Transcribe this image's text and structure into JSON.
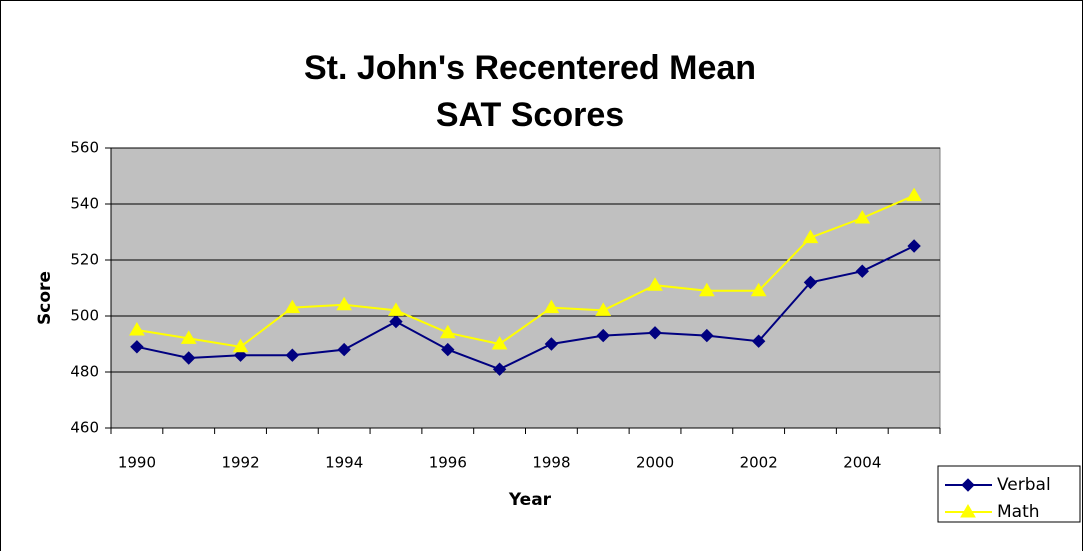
{
  "chart_data": {
    "type": "line",
    "title": [
      "St. John's Recentered Mean",
      "SAT Scores"
    ],
    "x_label": "Year",
    "y_label": "Score",
    "categories": [
      "1990",
      null,
      "1992",
      null,
      "1994",
      null,
      "1996",
      null,
      "1998",
      null,
      "2000",
      null,
      "2002",
      null,
      "2004",
      null
    ],
    "series": [
      {
        "name": "Verbal",
        "color": "#000080",
        "marker": "diamond",
        "values": [
          489,
          485,
          486,
          486,
          488,
          498,
          488,
          481,
          490,
          493,
          494,
          493,
          491,
          512,
          516,
          525
        ]
      },
      {
        "name": "Math",
        "color": "#ffff00",
        "marker": "triangle",
        "values": [
          495,
          492,
          489,
          503,
          504,
          502,
          494,
          490,
          503,
          502,
          511,
          509,
          509,
          528,
          535,
          543
        ]
      }
    ],
    "ylim": [
      460,
      560
    ],
    "yticks": [
      460,
      480,
      500,
      520,
      540,
      560
    ],
    "grid": true,
    "legend": "bottom-right"
  }
}
